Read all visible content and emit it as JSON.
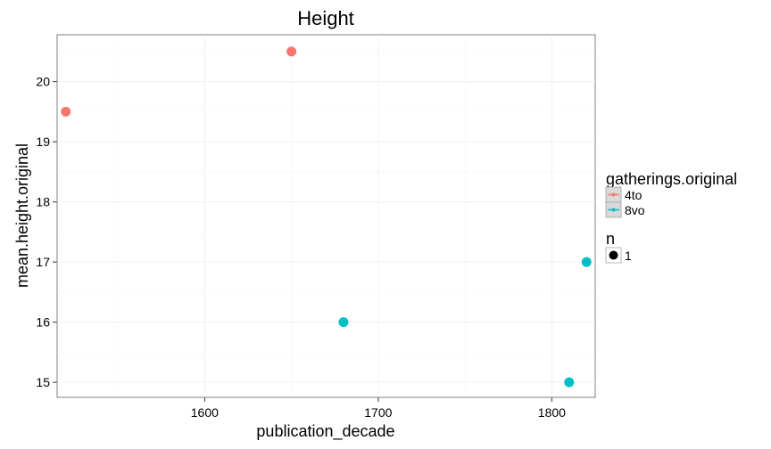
{
  "chart_data": {
    "type": "scatter",
    "title": "Height",
    "xlabel": "publication_decade",
    "ylabel": "mean.height.original",
    "xlim": [
      1515,
      1825
    ],
    "ylim": [
      14.75,
      20.78
    ],
    "x_ticks": [
      1600,
      1700,
      1800
    ],
    "y_ticks": [
      15,
      16,
      17,
      18,
      19,
      20
    ],
    "grid": true,
    "legend_placement": "right",
    "series": [
      {
        "name": "4to",
        "color": "#F8766D",
        "points": [
          {
            "x": 1520,
            "y": 19.5
          },
          {
            "x": 1650,
            "y": 20.5
          }
        ]
      },
      {
        "name": "8vo",
        "color": "#00BFC4",
        "points": [
          {
            "x": 1680,
            "y": 16
          },
          {
            "x": 1810,
            "y": 15
          },
          {
            "x": 1820,
            "y": 17
          }
        ]
      }
    ],
    "legend": {
      "color_title": "gatherings.original",
      "color_entries": [
        "4to",
        "8vo"
      ],
      "size_title": "n",
      "size_entries": [
        "1"
      ]
    }
  }
}
